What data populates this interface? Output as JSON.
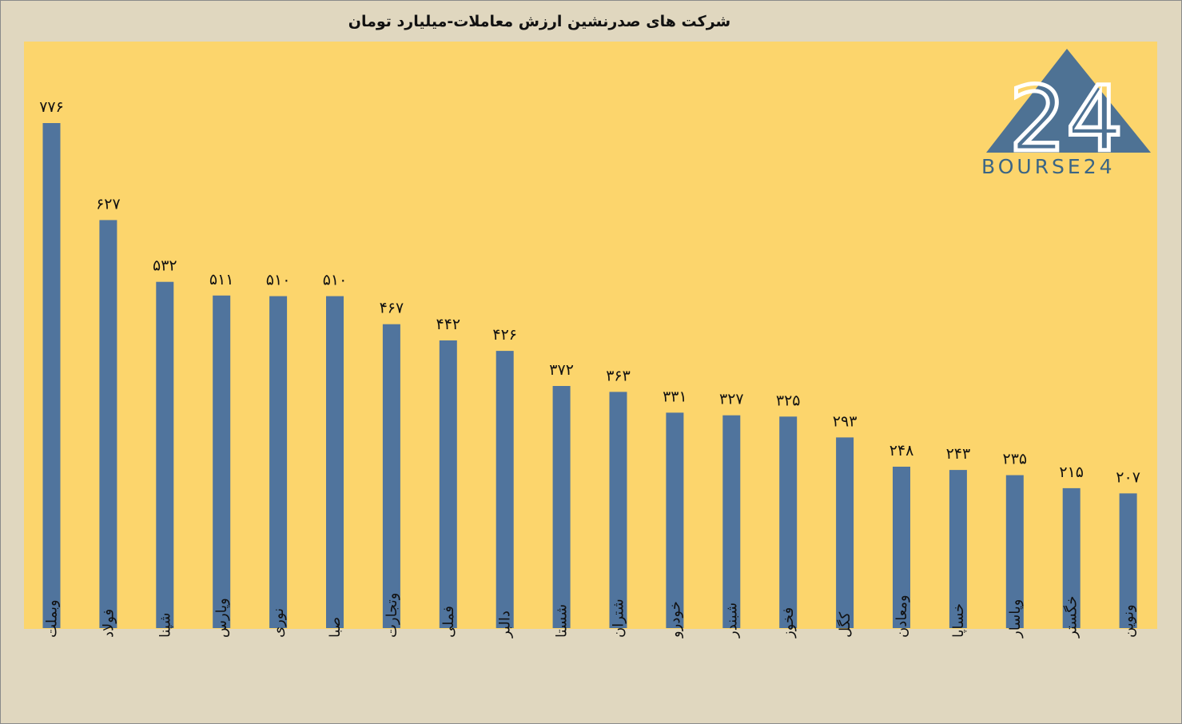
{
  "chart_data": {
    "type": "bar",
    "title": "شرکت های صدرنشین ارزش معاملات-میلیارد تومان",
    "categories": [
      "وبملت",
      "فولاد",
      "شپنا",
      "وپارس",
      "نوری",
      "صبا",
      "وتجارت",
      "فملی",
      "دالبر",
      "شستا",
      "شتران",
      "خودرو",
      "شبندر",
      "فخوز",
      "کگل",
      "ومعادن",
      "خساپا",
      "وپاسار",
      "خگستر",
      "ونوین"
    ],
    "values": [
      776,
      627,
      532,
      511,
      510,
      510,
      467,
      442,
      426,
      372,
      363,
      331,
      327,
      325,
      293,
      248,
      243,
      235,
      215,
      207
    ],
    "value_labels": [
      "۷۷۶",
      "۶۲۷",
      "۵۳۲",
      "۵۱۱",
      "۵۱۰",
      "۵۱۰",
      "۴۶۷",
      "۴۴۲",
      "۴۲۶",
      "۳۷۲",
      "۳۶۳",
      "۳۳۱",
      "۳۲۷",
      "۳۲۵",
      "۲۹۳",
      "۲۴۸",
      "۲۴۳",
      "۲۳۵",
      "۲۱۵",
      "۲۰۷"
    ],
    "ylim": [
      0,
      776
    ],
    "grid": false,
    "legend": "none",
    "bar_color": "#50749d",
    "plot_background": "#fcd56c",
    "page_background": "#e0d7bf"
  },
  "logo": {
    "text": "BOURSE24",
    "numeral": "24",
    "color": "#4e7294",
    "text_color": "#3a6585"
  }
}
